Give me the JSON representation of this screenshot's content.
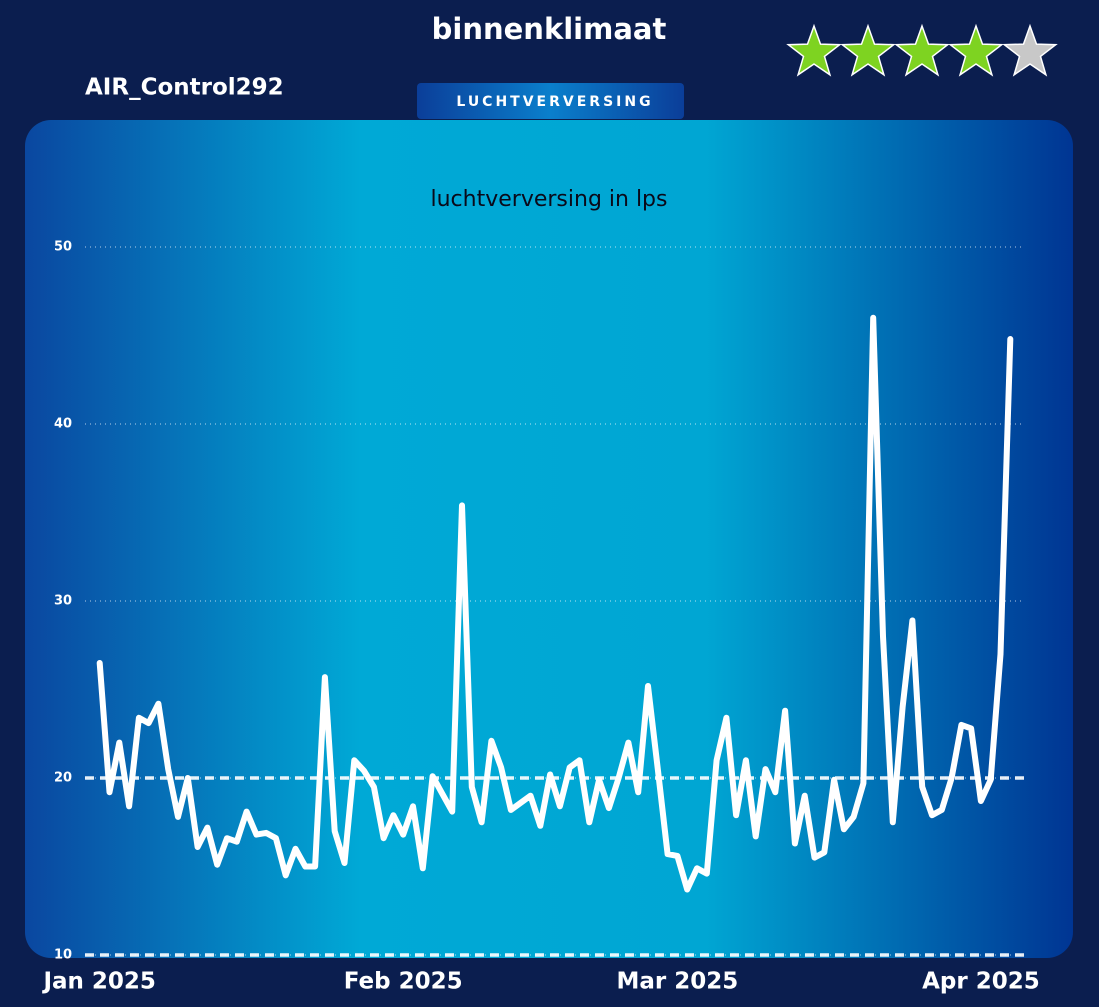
{
  "header": {
    "title": "binnenklimaat",
    "device": "AIR_Control292",
    "tab": "LUCHTVERVERSING"
  },
  "rating": {
    "value": 4,
    "max": 5,
    "color": "#7ed321",
    "empty_color": "#c8c8c8"
  },
  "chart_data": {
    "type": "line",
    "title": "luchtverversing in lps",
    "color": "#ffffff",
    "x": [
      0,
      1,
      2,
      3,
      4,
      5,
      6,
      7,
      8,
      9,
      10,
      11,
      12,
      13,
      14,
      15,
      16,
      17,
      18,
      19,
      20,
      21,
      22,
      23,
      24,
      25,
      26,
      27,
      28,
      29,
      30,
      31,
      32,
      33,
      34,
      35,
      36,
      37,
      38,
      39,
      40,
      41,
      42,
      43,
      44,
      45,
      46,
      47,
      48,
      49,
      50,
      51,
      52,
      53,
      54,
      55,
      56,
      57,
      58,
      59,
      60,
      61,
      62,
      63,
      64,
      65,
      66,
      67,
      68,
      69,
      70,
      71,
      72,
      73,
      74,
      75,
      76,
      77,
      78,
      79,
      80,
      81,
      82,
      83,
      84,
      85,
      86,
      87,
      88,
      89,
      90,
      91,
      92,
      93
    ],
    "values": [
      26.5,
      19.2,
      22.0,
      18.4,
      23.4,
      23.1,
      24.2,
      20.5,
      17.8,
      20.0,
      16.1,
      17.2,
      15.1,
      16.6,
      16.4,
      18.1,
      16.8,
      16.9,
      16.6,
      14.5,
      16.0,
      15.0,
      15.0,
      25.7,
      17.0,
      15.2,
      21.0,
      20.4,
      19.5,
      16.6,
      17.9,
      16.8,
      18.4,
      14.9,
      20.1,
      19.1,
      18.1,
      35.4,
      19.5,
      17.5,
      22.1,
      20.6,
      18.2,
      18.6,
      19.0,
      17.3,
      20.2,
      18.4,
      20.6,
      21.0,
      17.5,
      19.9,
      18.3,
      20.0,
      22.0,
      19.2,
      25.2,
      20.5,
      15.7,
      15.6,
      13.7,
      14.9,
      14.6,
      21.0,
      23.4,
      17.9,
      21.0,
      16.7,
      20.5,
      19.2,
      23.8,
      16.3,
      19.0,
      15.5,
      15.8,
      19.9,
      17.1,
      17.8,
      19.7,
      46.0,
      28.0,
      17.5,
      24.0,
      28.9,
      19.5,
      17.9,
      18.2,
      20.0,
      23.0,
      22.8,
      18.7,
      19.9,
      27.0,
      44.8
    ],
    "xlim": [
      -1.5,
      94.5
    ],
    "xticks": [
      {
        "value": 0,
        "label": "Jan 2025"
      },
      {
        "value": 31,
        "label": "Feb 2025"
      },
      {
        "value": 59,
        "label": "Mar 2025"
      },
      {
        "value": 90,
        "label": "Apr 2025"
      }
    ],
    "ylim": [
      10,
      50
    ],
    "yticks": [
      10,
      20,
      30,
      40,
      50
    ],
    "grid": true,
    "reference_lines": [
      20,
      10
    ]
  }
}
